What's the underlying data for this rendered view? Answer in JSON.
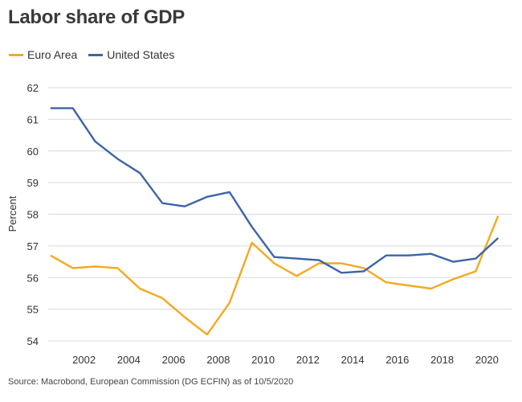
{
  "title": "Labor share of GDP",
  "source": "Source: Macrobond, European Commission (DG ECFIN) as of 10/5/2020",
  "colors": {
    "euro_area": "#f5a91f",
    "united_states": "#3d64a8",
    "grid": "#d9d9d9"
  },
  "chart_data": {
    "type": "line",
    "title": "Labor share of GDP",
    "xlabel": "",
    "ylabel": "Percent",
    "ylim": [
      54,
      62
    ],
    "xlim": [
      2000.4,
      2021.1
    ],
    "grid": true,
    "legend": "top-left",
    "y_ticks": [
      54,
      55,
      56,
      57,
      58,
      59,
      60,
      61,
      62
    ],
    "x_ticks": [
      2002,
      2004,
      2006,
      2008,
      2010,
      2012,
      2014,
      2016,
      2018,
      2020
    ],
    "series": [
      {
        "name": "Euro Area",
        "x": [
          2000.5,
          2001.5,
          2002.5,
          2003.5,
          2004.5,
          2005.5,
          2006.5,
          2007.5,
          2008.5,
          2009.5,
          2010.5,
          2011.5,
          2012.5,
          2013.5,
          2014.5,
          2015.5,
          2016.5,
          2017.5,
          2018.5,
          2019.5,
          2020.5
        ],
        "values": [
          56.7,
          56.3,
          56.35,
          56.3,
          55.65,
          55.35,
          54.75,
          54.2,
          55.2,
          57.1,
          56.45,
          56.05,
          56.45,
          56.45,
          56.3,
          55.85,
          55.75,
          55.65,
          55.95,
          56.2,
          57.95
        ]
      },
      {
        "name": "United States",
        "x": [
          2000.5,
          2001.5,
          2002.5,
          2003.5,
          2004.5,
          2005.5,
          2006.5,
          2007.5,
          2008.5,
          2009.5,
          2010.5,
          2011.5,
          2012.5,
          2013.5,
          2014.5,
          2015.5,
          2016.5,
          2017.5,
          2018.5,
          2019.5,
          2020.5
        ],
        "values": [
          61.35,
          61.35,
          60.3,
          59.75,
          59.3,
          58.35,
          58.25,
          58.55,
          58.7,
          57.6,
          56.65,
          56.6,
          56.55,
          56.15,
          56.2,
          56.7,
          56.7,
          56.75,
          56.5,
          56.6,
          57.25
        ]
      }
    ]
  }
}
